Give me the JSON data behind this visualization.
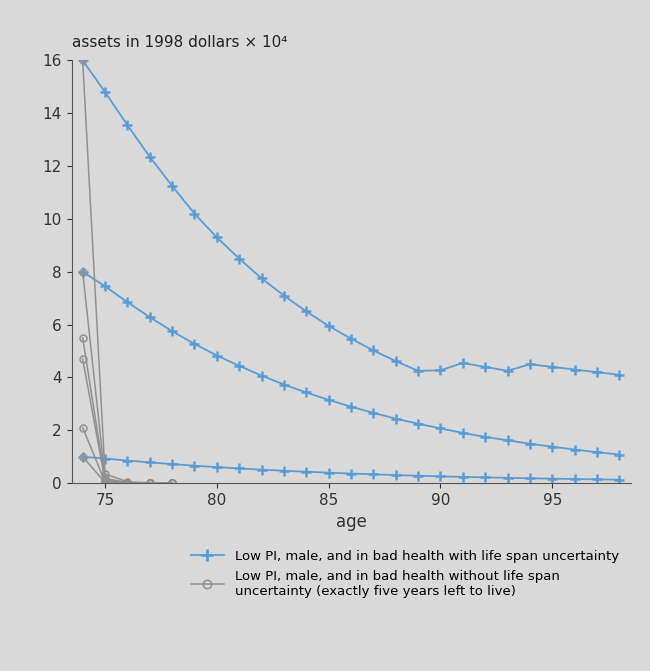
{
  "title_ylabel": "assets in 1998 dollars × 10⁴",
  "xlabel": "age",
  "background_color": "#d9d9d9",
  "ages": [
    74,
    75,
    76,
    77,
    78,
    79,
    80,
    81,
    82,
    83,
    84,
    85,
    86,
    87,
    88,
    89,
    90,
    91,
    92,
    93,
    94,
    95,
    96,
    97,
    98
  ],
  "blue_line1": [
    16.0,
    14.8,
    13.55,
    12.35,
    11.25,
    10.2,
    9.3,
    8.5,
    7.75,
    7.1,
    6.5,
    5.95,
    5.47,
    5.02,
    4.62,
    4.25,
    4.27,
    4.55,
    4.4,
    4.25,
    4.5,
    4.4,
    4.3,
    4.2,
    4.1
  ],
  "blue_line2": [
    8.0,
    7.45,
    6.85,
    6.28,
    5.75,
    5.27,
    4.83,
    4.44,
    4.07,
    3.73,
    3.43,
    3.15,
    2.89,
    2.66,
    2.44,
    2.25,
    2.07,
    1.9,
    1.75,
    1.62,
    1.49,
    1.38,
    1.27,
    1.17,
    1.08
  ],
  "blue_line3": [
    1.0,
    0.93,
    0.855,
    0.785,
    0.72,
    0.66,
    0.605,
    0.555,
    0.51,
    0.468,
    0.43,
    0.395,
    0.362,
    0.332,
    0.305,
    0.28,
    0.257,
    0.236,
    0.217,
    0.199,
    0.183,
    0.168,
    0.154,
    0.142,
    0.13
  ],
  "gray_line1_ages": [
    74,
    75,
    76,
    77,
    78
  ],
  "gray_line1": [
    16.0,
    0.35,
    0.05,
    0.01,
    0.0
  ],
  "gray_line2_ages": [
    74,
    75,
    76,
    77,
    78
  ],
  "gray_line2": [
    8.0,
    0.18,
    0.02,
    0.005,
    0.0
  ],
  "gray_line3_ages": [
    74,
    75,
    76,
    77,
    78
  ],
  "gray_line3": [
    5.5,
    0.12,
    0.015,
    0.003,
    0.0
  ],
  "gray_line4_ages": [
    74,
    75,
    76,
    77,
    78
  ],
  "gray_line4": [
    4.7,
    0.1,
    0.01,
    0.002,
    0.0
  ],
  "gray_line5_ages": [
    74,
    75,
    76,
    77,
    78
  ],
  "gray_line5": [
    2.1,
    0.05,
    0.005,
    0.001,
    0.0
  ],
  "gray_line6_ages": [
    74,
    75,
    76,
    77,
    78
  ],
  "gray_line6": [
    1.0,
    0.025,
    0.003,
    0.0005,
    0.0
  ],
  "blue_color": "#5b9bd5",
  "gray_color": "#909090",
  "ylim": [
    0,
    16
  ],
  "xlim": [
    73.5,
    98.5
  ],
  "yticks": [
    0,
    2,
    4,
    6,
    8,
    10,
    12,
    14,
    16
  ],
  "xticks": [
    75,
    80,
    85,
    90,
    95
  ],
  "legend_blue_label": "Low PI, male, and in bad health with life span uncertainty",
  "legend_gray_label": "Low PI, male, and in bad health without life span\nuncertainty (exactly five years left to live)"
}
